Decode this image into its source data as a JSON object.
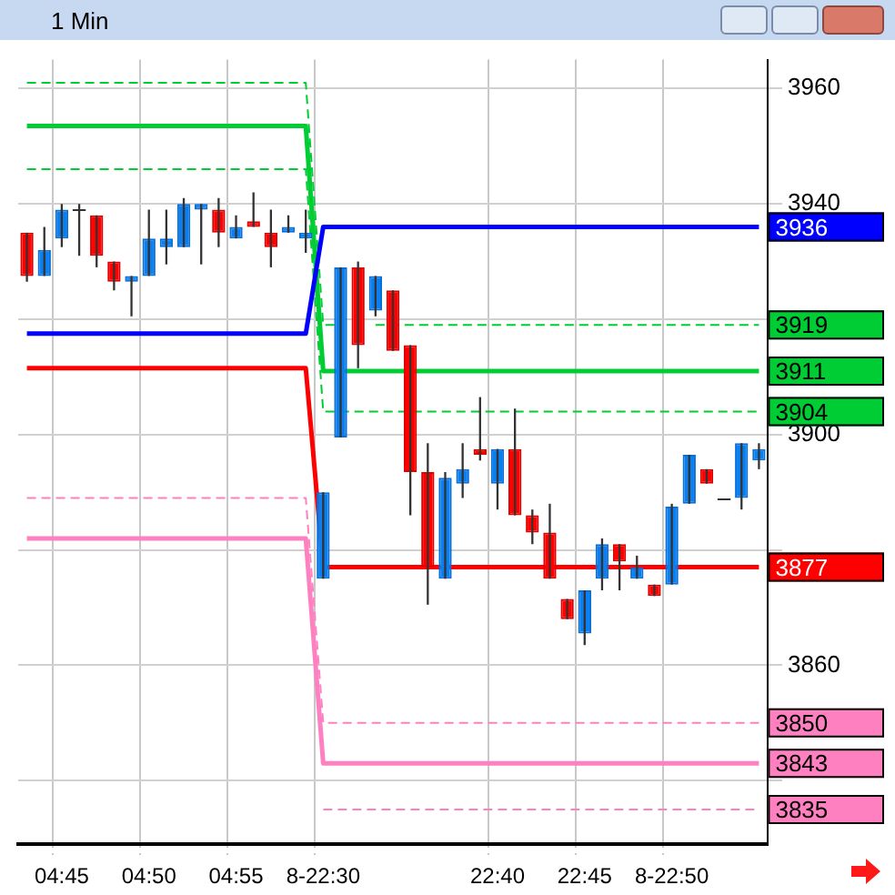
{
  "chart_data": {
    "type": "candlestick",
    "title": "1 Min",
    "categories": [
      null,
      null,
      "04:45",
      null,
      null,
      null,
      null,
      "04:50",
      null,
      null,
      null,
      null,
      "04:55",
      null,
      null,
      null,
      null,
      "8-22:30",
      null,
      null,
      null,
      null,
      null,
      null,
      null,
      null,
      null,
      "22:40",
      null,
      null,
      null,
      null,
      "22:45",
      null,
      null,
      null,
      null,
      "8-22:50",
      null,
      null,
      null,
      null,
      null
    ],
    "ohlc": [
      [
        3935,
        3935,
        3926.5,
        3927.5
      ],
      [
        3927.5,
        3936,
        3927.5,
        3932
      ],
      [
        3934,
        3940,
        3932.5,
        3939
      ],
      [
        3939,
        3940,
        3931,
        3939
      ],
      [
        3938,
        3938,
        3929,
        3931
      ],
      [
        3930,
        3930,
        3925,
        3926.5
      ],
      [
        3926.5,
        3927.5,
        3920.5,
        3927.5
      ],
      [
        3927.5,
        3939,
        3927.5,
        3934
      ],
      [
        3932.5,
        3939,
        3929.5,
        3934
      ],
      [
        3932.5,
        3941,
        3932.5,
        3940
      ],
      [
        3939,
        3940,
        3929.5,
        3940
      ],
      [
        3939,
        3941,
        3932.5,
        3935
      ],
      [
        3934,
        3938,
        3934,
        3936
      ],
      [
        3937,
        3942,
        3936,
        3936
      ],
      [
        3935,
        3939,
        3929,
        3932.5
      ],
      [
        3935,
        3938,
        3935,
        3936
      ],
      [
        3934,
        3939,
        3931.5,
        3935
      ],
      [
        3875,
        3890,
        3875,
        3890
      ],
      [
        3899.5,
        3929,
        3899.5,
        3929
      ],
      [
        3929,
        3930,
        3911.5,
        3915.5
      ],
      [
        3921.5,
        3927.5,
        3920.5,
        3927.5
      ],
      [
        3925,
        3925,
        3914.5,
        3914.5
      ],
      [
        3915.5,
        3915.5,
        3886,
        3893.5
      ],
      [
        3893.5,
        3898.5,
        3870.5,
        3877
      ],
      [
        3875,
        3893.5,
        3875,
        3892.5
      ],
      [
        3891.5,
        3898.5,
        3889,
        3894
      ],
      [
        3897.5,
        3906.5,
        3895.5,
        3896.5
      ],
      [
        3891.5,
        3897.5,
        3887,
        3897.5
      ],
      [
        3897.5,
        3904.5,
        3886,
        3886
      ],
      [
        3886,
        3887,
        3881,
        3883
      ],
      [
        3883,
        3888,
        3875,
        3875
      ],
      [
        3871.5,
        3871.5,
        3868,
        3868
      ],
      [
        3865.5,
        3873,
        3863.5,
        3873
      ],
      [
        3875,
        3882,
        3873,
        3881
      ],
      [
        3881,
        3881,
        3873,
        3878
      ],
      [
        3875,
        3879,
        3875,
        3877
      ],
      [
        3874,
        3874,
        3872,
        3872
      ],
      [
        3874,
        3888,
        3874,
        3887.5
      ],
      [
        3888,
        3896.5,
        3888,
        3896.5
      ],
      [
        3894,
        3894,
        3891.5,
        3891.5
      ],
      [
        3889,
        3889,
        3889,
        3889
      ],
      [
        3889,
        3898.5,
        3887,
        3898.5
      ],
      [
        3895.5,
        3898.5,
        3894,
        3897.5
      ]
    ],
    "series": [
      {
        "type": "line",
        "color": "#0000ff",
        "line_style": "solid",
        "values": [
          3917.5,
          3917.5,
          3917.5,
          3917.5,
          3917.5,
          3917.5,
          3917.5,
          3917.5,
          3917.5,
          3917.5,
          3917.5,
          3917.5,
          3917.5,
          3917.5,
          3917.5,
          3917.5,
          3917.5,
          3936,
          3936,
          3936,
          3936,
          3936,
          3936,
          3936,
          3936,
          3936,
          3936,
          3936,
          3936,
          3936,
          3936,
          3936,
          3936,
          3936,
          3936,
          3936,
          3936,
          3936,
          3936,
          3936,
          3936,
          3936,
          3936
        ],
        "value_labels": [
          null,
          null,
          null,
          null,
          null,
          null,
          null,
          null,
          null,
          null,
          null,
          null,
          null,
          null,
          null,
          null,
          null,
          null,
          null,
          null,
          null,
          null,
          null,
          null,
          null,
          null,
          null,
          null,
          null,
          null,
          null,
          null,
          null,
          null,
          null,
          null,
          null,
          null,
          null,
          null,
          null,
          null,
          "3936"
        ]
      },
      {
        "type": "line",
        "color": "#00cc33",
        "line_style": "solid",
        "values": [
          3953.5,
          3953.5,
          3953.5,
          3953.5,
          3953.5,
          3953.5,
          3953.5,
          3953.5,
          3953.5,
          3953.5,
          3953.5,
          3953.5,
          3953.5,
          3953.5,
          3953.5,
          3953.5,
          3953.5,
          3911,
          3911,
          3911,
          3911,
          3911,
          3911,
          3911,
          3911,
          3911,
          3911,
          3911,
          3911,
          3911,
          3911,
          3911,
          3911,
          3911,
          3911,
          3911,
          3911,
          3911,
          3911,
          3911,
          3911,
          3911,
          3911
        ],
        "value_labels": [
          null,
          null,
          null,
          null,
          null,
          null,
          null,
          null,
          null,
          null,
          null,
          null,
          null,
          null,
          null,
          null,
          null,
          null,
          null,
          null,
          null,
          null,
          null,
          null,
          null,
          null,
          null,
          null,
          null,
          null,
          null,
          null,
          null,
          null,
          null,
          null,
          null,
          null,
          null,
          null,
          null,
          null,
          "3911"
        ]
      },
      {
        "type": "line",
        "color": "#ff0000",
        "line_style": "solid",
        "values": [
          3911.5,
          3911.5,
          3911.5,
          3911.5,
          3911.5,
          3911.5,
          3911.5,
          3911.5,
          3911.5,
          3911.5,
          3911.5,
          3911.5,
          3911.5,
          3911.5,
          3911.5,
          3911.5,
          3911.5,
          3877,
          3877,
          3877,
          3877,
          3877,
          3877,
          3877,
          3877,
          3877,
          3877,
          3877,
          3877,
          3877,
          3877,
          3877,
          3877,
          3877,
          3877,
          3877,
          3877,
          3877,
          3877,
          3877,
          3877,
          3877,
          3877
        ],
        "value_labels": [
          null,
          null,
          null,
          null,
          null,
          null,
          null,
          null,
          null,
          null,
          null,
          null,
          null,
          null,
          null,
          null,
          null,
          null,
          null,
          null,
          null,
          null,
          null,
          null,
          null,
          null,
          null,
          null,
          null,
          null,
          null,
          null,
          null,
          null,
          null,
          null,
          null,
          null,
          null,
          null,
          null,
          null,
          "3877"
        ]
      },
      {
        "type": "line",
        "color": "#ff80c0",
        "line_style": "solid",
        "values": [
          3882,
          3882,
          3882,
          3882,
          3882,
          3882,
          3882,
          3882,
          3882,
          3882,
          3882,
          3882,
          3882,
          3882,
          3882,
          3882,
          3882,
          3843,
          3843,
          3843,
          3843,
          3843,
          3843,
          3843,
          3843,
          3843,
          3843,
          3843,
          3843,
          3843,
          3843,
          3843,
          3843,
          3843,
          3843,
          3843,
          3843,
          3843,
          3843,
          3843,
          3843,
          3843,
          3843
        ],
        "value_labels": [
          null,
          null,
          null,
          null,
          null,
          null,
          null,
          null,
          null,
          null,
          null,
          null,
          null,
          null,
          null,
          null,
          null,
          null,
          null,
          null,
          null,
          null,
          null,
          null,
          null,
          null,
          null,
          null,
          null,
          null,
          null,
          null,
          null,
          null,
          null,
          null,
          null,
          null,
          null,
          null,
          null,
          null,
          "3843"
        ]
      },
      {
        "type": "line",
        "color": "#00cc33",
        "line_style": "dashed",
        "values": [
          3961,
          3961,
          3961,
          3961,
          3961,
          3961,
          3961,
          3961,
          3961,
          3961,
          3961,
          3961,
          3961,
          3961,
          3961,
          3961,
          3961,
          3919,
          3919,
          null,
          3919,
          3919,
          3919,
          3919,
          3919,
          3919,
          3919,
          3919,
          3919,
          3919,
          3919,
          3919,
          3919,
          3919,
          3919,
          3919,
          3919,
          3919,
          3919,
          3919,
          3919,
          3919,
          3919
        ],
        "value_labels": [
          null,
          null,
          null,
          null,
          null,
          null,
          null,
          null,
          null,
          null,
          null,
          null,
          null,
          null,
          null,
          null,
          null,
          null,
          null,
          null,
          null,
          null,
          null,
          null,
          null,
          null,
          null,
          null,
          null,
          null,
          null,
          null,
          null,
          null,
          null,
          null,
          null,
          null,
          null,
          null,
          null,
          null,
          "3919"
        ]
      },
      {
        "type": "line",
        "color": "#00cc33",
        "line_style": "dashed",
        "values": [
          3946,
          3946,
          3946,
          3946,
          3946,
          3946,
          3946,
          3946,
          3946,
          3946,
          3946,
          3946,
          3946,
          3946,
          3946,
          3946,
          3946,
          3904,
          3904,
          3904,
          3904,
          3904,
          3904,
          3904,
          3904,
          3904,
          3904,
          3904,
          3904,
          3904,
          3904,
          3904,
          3904,
          3904,
          3904,
          3904,
          3904,
          3904,
          3904,
          3904,
          3904,
          3904,
          3904
        ],
        "value_labels": [
          null,
          null,
          null,
          null,
          null,
          null,
          null,
          null,
          null,
          null,
          null,
          null,
          null,
          null,
          null,
          null,
          null,
          null,
          null,
          null,
          null,
          null,
          null,
          null,
          null,
          null,
          null,
          null,
          null,
          null,
          null,
          null,
          null,
          null,
          null,
          null,
          null,
          null,
          null,
          null,
          null,
          null,
          "3904"
        ]
      },
      {
        "type": "line",
        "color": "#ff80c0",
        "line_style": "dashed",
        "values": [
          3889,
          3889,
          3889,
          3889,
          3889,
          3889,
          3889,
          3889,
          3889,
          3889,
          3889,
          3889,
          3889,
          3889,
          3889,
          3889,
          3889,
          3850,
          3850,
          3850,
          3850,
          3850,
          3850,
          3850,
          3850,
          3850,
          3850,
          3850,
          3850,
          3850,
          3850,
          3850,
          3850,
          3850,
          3850,
          3850,
          3850,
          3850,
          3850,
          3850,
          3850,
          3850,
          3850
        ],
        "value_labels": [
          null,
          null,
          null,
          null,
          null,
          null,
          null,
          null,
          null,
          null,
          null,
          null,
          null,
          null,
          null,
          null,
          null,
          null,
          null,
          null,
          null,
          null,
          null,
          null,
          null,
          null,
          null,
          null,
          null,
          null,
          null,
          null,
          null,
          null,
          null,
          null,
          null,
          null,
          null,
          null,
          null,
          null,
          "3850"
        ]
      },
      {
        "type": "line",
        "color": "#ff80c0",
        "line_style": "dashed",
        "values": [
          null,
          null,
          null,
          null,
          null,
          null,
          null,
          null,
          null,
          null,
          null,
          null,
          null,
          null,
          null,
          null,
          null,
          3835,
          3835,
          3835,
          3835,
          3835,
          3835,
          3835,
          3835,
          3835,
          3835,
          3835,
          3835,
          3835,
          3835,
          3835,
          3835,
          3835,
          3835,
          3835,
          3835,
          3835,
          3835,
          3835,
          3835,
          3835,
          3835
        ],
        "value_labels": [
          null,
          null,
          null,
          null,
          null,
          null,
          null,
          null,
          null,
          null,
          null,
          null,
          null,
          null,
          null,
          null,
          null,
          null,
          null,
          null,
          null,
          null,
          null,
          null,
          null,
          null,
          null,
          null,
          null,
          null,
          null,
          null,
          null,
          null,
          null,
          null,
          null,
          null,
          null,
          null,
          null,
          null,
          "3835"
        ]
      }
    ],
    "ylim": [
      3829,
      3965
    ],
    "yticks": [
      {
        "value": 3840,
        "label": null
      },
      3860,
      {
        "value": 3880,
        "label": null
      },
      3900,
      {
        "value": 3920,
        "label": null
      },
      3940,
      3960
    ],
    "grid": true
  }
}
